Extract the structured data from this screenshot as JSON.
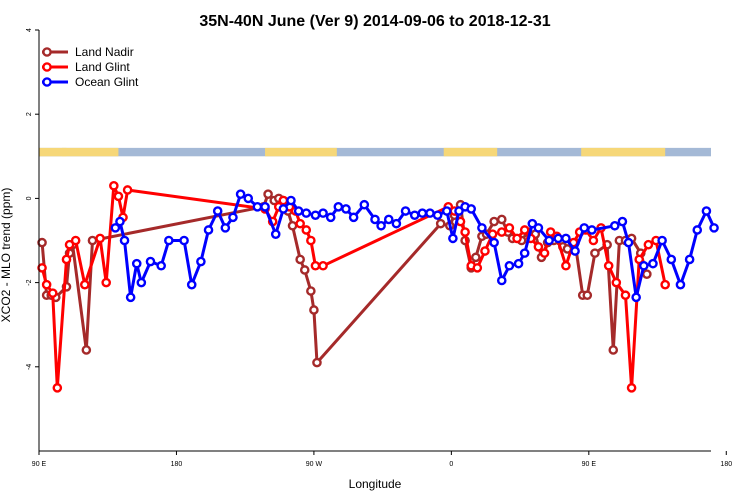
{
  "chart_data": {
    "type": "line",
    "title": "35N-40N June (Ver 9)   2014-09-06 to 2018-12-31",
    "xlabel": "Longitude",
    "ylabel": "XCO2 - MLO trend (ppm)",
    "xlim": [
      0,
      440
    ],
    "ylim": [
      -6,
      4
    ],
    "x_ticks": [
      {
        "value": 0,
        "label": "90 E"
      },
      {
        "value": 90,
        "label": "180"
      },
      {
        "value": 180,
        "label": "90 W"
      },
      {
        "value": 270,
        "label": "0"
      },
      {
        "value": 360,
        "label": "90 E"
      },
      {
        "value": 450,
        "label": "180"
      }
    ],
    "y_ticks": [
      {
        "value": 4,
        "label": "4"
      },
      {
        "value": 2,
        "label": "2"
      },
      {
        "value": 0,
        "label": "0"
      },
      {
        "value": -2,
        "label": "-2"
      },
      {
        "value": -4,
        "label": "-4"
      }
    ],
    "legend_position": "top-left",
    "land_ocean_band": {
      "y_range": [
        1.0,
        1.2
      ],
      "ocean_color": "#a4b9d6",
      "land_color": "#f6d778",
      "land_segments": [
        [
          0,
          18
        ],
        [
          15,
          52
        ],
        [
          148,
          195
        ],
        [
          265,
          300
        ],
        [
          355,
          410
        ]
      ]
    },
    "series": [
      {
        "name": "Land Nadir",
        "color": "#a52a2a",
        "x": [
          2,
          5,
          8,
          11,
          18,
          20,
          22,
          31,
          35,
          147,
          150,
          154,
          157,
          160,
          163,
          166,
          171,
          174,
          178,
          180,
          182,
          263,
          269,
          272,
          276,
          279,
          283,
          286,
          290,
          293,
          298,
          303,
          307,
          310,
          316,
          320,
          325,
          329,
          333,
          337,
          343,
          346,
          351,
          356,
          359,
          364,
          372,
          376,
          380,
          384,
          388,
          394,
          398
        ],
        "y": [
          -1.05,
          -2.3,
          -2.3,
          -2.35,
          -2.1,
          -1.3,
          -1.1,
          -3.6,
          -1.0,
          -0.2,
          0.1,
          -0.05,
          0.0,
          -0.05,
          -0.3,
          -0.65,
          -1.45,
          -1.7,
          -2.2,
          -2.65,
          -3.9,
          -0.6,
          -0.65,
          -0.4,
          -0.15,
          -1.0,
          -1.65,
          -1.4,
          -0.9,
          -0.85,
          -0.55,
          -0.5,
          -0.8,
          -0.95,
          -1.0,
          -0.8,
          -0.85,
          -1.4,
          -1.05,
          -1.0,
          -1.15,
          -1.2,
          -1.05,
          -2.3,
          -2.3,
          -1.3,
          -1.1,
          -3.6,
          -1.0,
          -1.0,
          -0.95,
          -1.3,
          -1.8
        ]
      },
      {
        "name": "Land Glint",
        "color": "#ff0000",
        "x": [
          2,
          5,
          9,
          12,
          18,
          20,
          24,
          30,
          40,
          44,
          49,
          52,
          55,
          58,
          148,
          153,
          157,
          160,
          164,
          168,
          171,
          175,
          178,
          181,
          186,
          268,
          272,
          276,
          279,
          283,
          287,
          292,
          297,
          303,
          308,
          313,
          318,
          322,
          327,
          331,
          335,
          339,
          345,
          350,
          354,
          358,
          363,
          368,
          373,
          378,
          384,
          388,
          393,
          399,
          404,
          410
        ],
        "y": [
          -1.65,
          -2.05,
          -2.25,
          -4.5,
          -1.45,
          -1.1,
          -1.0,
          -2.05,
          -0.95,
          -2.0,
          0.3,
          0.05,
          -0.45,
          0.2,
          -0.25,
          -0.55,
          -0.2,
          -0.05,
          -0.2,
          -0.3,
          -0.6,
          -0.75,
          -1.0,
          -1.6,
          -1.6,
          -0.2,
          -0.3,
          -0.55,
          -0.8,
          -1.6,
          -1.65,
          -1.25,
          -0.85,
          -0.8,
          -0.7,
          -0.95,
          -0.75,
          -0.95,
          -1.15,
          -1.3,
          -0.8,
          -0.9,
          -1.6,
          -1.05,
          -0.8,
          -0.75,
          -1.0,
          -0.7,
          -1.6,
          -2.0,
          -2.3,
          -4.5,
          -1.45,
          -1.1,
          -1.0,
          -2.05
        ]
      },
      {
        "name": "Ocean Glint",
        "color": "#0000ff",
        "x": [
          50,
          53,
          56,
          60,
          64,
          67,
          73,
          80,
          85,
          95,
          100,
          106,
          111,
          117,
          122,
          127,
          132,
          137,
          143,
          148,
          155,
          160,
          165,
          170,
          175,
          181,
          186,
          191,
          196,
          201,
          206,
          213,
          220,
          224,
          229,
          234,
          240,
          246,
          251,
          256,
          261,
          267,
          271,
          275,
          279,
          283,
          290,
          298,
          303,
          308,
          314,
          318,
          323,
          327,
          334,
          340,
          345,
          351,
          357,
          362,
          377,
          382,
          386,
          391,
          396,
          402,
          408,
          414,
          420,
          426,
          431,
          437,
          442
        ],
        "y": [
          -0.7,
          -0.55,
          -1.0,
          -2.35,
          -1.55,
          -2.0,
          -1.5,
          -1.6,
          -1.0,
          -1.0,
          -2.05,
          -1.5,
          -0.75,
          -0.3,
          -0.7,
          -0.45,
          0.1,
          0.0,
          -0.2,
          -0.2,
          -0.85,
          -0.25,
          -0.05,
          -0.3,
          -0.35,
          -0.4,
          -0.35,
          -0.45,
          -0.2,
          -0.25,
          -0.45,
          -0.15,
          -0.5,
          -0.65,
          -0.5,
          -0.6,
          -0.3,
          -0.4,
          -0.35,
          -0.35,
          -0.4,
          -0.3,
          -0.95,
          -0.3,
          -0.2,
          -0.25,
          -0.7,
          -1.05,
          -1.95,
          -1.6,
          -1.55,
          -1.3,
          -0.6,
          -0.7,
          -1.0,
          -0.95,
          -0.95,
          -1.25,
          -0.7,
          -0.75,
          -0.65,
          -0.55,
          -1.05,
          -2.35,
          -1.6,
          -1.55,
          -1.0,
          -1.45,
          -2.05,
          -1.45,
          -0.75,
          -0.3,
          -0.7
        ]
      }
    ]
  }
}
